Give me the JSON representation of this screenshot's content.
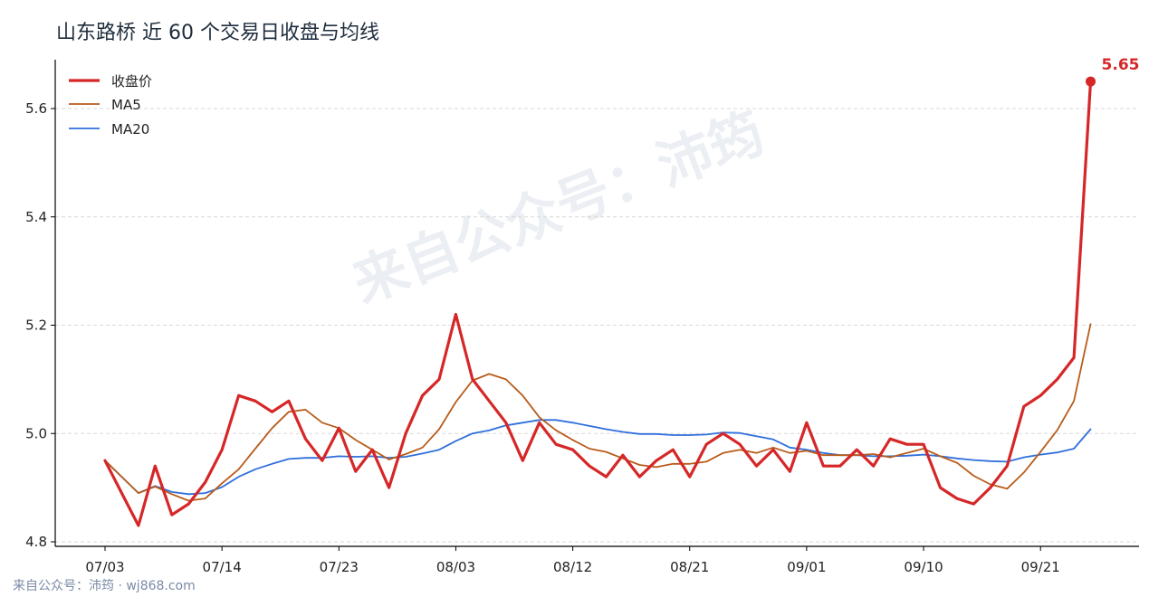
{
  "title": "山东路桥 近 60 个交易日收盘与均线",
  "footer": "来自公众号：沛筠 · wj868.com",
  "watermark": "来自公众号：沛筠",
  "colors": {
    "close": "#d62728",
    "ma5": "#b85c1a",
    "ma20": "#2f6fdc",
    "grid": "#d9d9d9"
  },
  "chart_data": {
    "type": "line",
    "title": "山东路桥 近 60 个交易日收盘与均线",
    "xlabel": "",
    "ylabel": "",
    "ylim": [
      4.79,
      5.69
    ],
    "yticks": [
      "4.8",
      "5.0",
      "5.2",
      "5.4",
      "5.6"
    ],
    "xticks": [
      {
        "label": "07/03",
        "index": 0
      },
      {
        "label": "07/14",
        "index": 7
      },
      {
        "label": "07/23",
        "index": 14
      },
      {
        "label": "08/03",
        "index": 21
      },
      {
        "label": "08/12",
        "index": 28
      },
      {
        "label": "08/21",
        "index": 35
      },
      {
        "label": "09/01",
        "index": 42
      },
      {
        "label": "09/10",
        "index": 49
      },
      {
        "label": "09/21",
        "index": 56
      }
    ],
    "grid": "horizontal dashed",
    "legend_position": "top-left",
    "last_value_label": "5.65",
    "series": [
      {
        "name": "收盘价",
        "values": [
          4.95,
          4.89,
          4.83,
          4.94,
          4.85,
          4.87,
          4.91,
          4.97,
          5.07,
          5.06,
          5.04,
          5.06,
          4.99,
          4.95,
          5.01,
          4.93,
          4.97,
          4.9,
          5.0,
          5.07,
          5.1,
          5.22,
          5.1,
          5.06,
          5.02,
          4.95,
          5.02,
          4.98,
          4.97,
          4.94,
          4.92,
          4.96,
          4.92,
          4.95,
          4.97,
          4.92,
          4.98,
          5.0,
          4.98,
          4.94,
          4.97,
          4.93,
          5.02,
          4.94,
          4.94,
          4.97,
          4.94,
          4.99,
          4.98,
          4.98,
          4.9,
          4.88,
          4.87,
          4.9,
          4.94,
          5.05,
          5.07,
          5.1,
          5.14,
          5.65
        ]
      },
      {
        "name": "MA5",
        "values": [
          4.95,
          4.92,
          4.89,
          4.902,
          4.888,
          4.876,
          4.88,
          4.908,
          4.934,
          4.972,
          5.01,
          5.04,
          5.044,
          5.02,
          5.01,
          4.988,
          4.97,
          4.952,
          4.962,
          4.974,
          5.008,
          5.058,
          5.098,
          5.11,
          5.1,
          5.07,
          5.03,
          5.006,
          4.988,
          4.972,
          4.966,
          4.954,
          4.942,
          4.938,
          4.944,
          4.944,
          4.948,
          4.964,
          4.97,
          4.964,
          4.974,
          4.964,
          4.968,
          4.96,
          4.96,
          4.96,
          4.962,
          4.956,
          4.964,
          4.972,
          4.958,
          4.946,
          4.922,
          4.906,
          4.898,
          4.928,
          4.966,
          5.006,
          5.06,
          5.202
        ]
      },
      {
        "name": "MA20",
        "values": [
          4.95,
          4.92,
          4.89,
          4.903,
          4.892,
          4.888,
          4.89,
          4.901,
          4.92,
          4.934,
          4.944,
          4.953,
          4.955,
          4.955,
          4.958,
          4.957,
          4.958,
          4.955,
          4.957,
          4.963,
          4.97,
          4.986,
          5.0,
          5.006,
          5.015,
          5.02,
          5.025,
          5.025,
          5.02,
          5.014,
          5.008,
          5.003,
          4.999,
          4.999,
          4.997,
          4.997,
          4.998,
          5.002,
          5.001,
          4.995,
          4.989,
          4.974,
          4.97,
          4.964,
          4.96,
          4.96,
          4.958,
          4.958,
          4.959,
          4.961,
          4.958,
          4.954,
          4.951,
          4.949,
          4.948,
          4.956,
          4.961,
          4.965,
          4.972,
          5.008
        ]
      }
    ]
  }
}
